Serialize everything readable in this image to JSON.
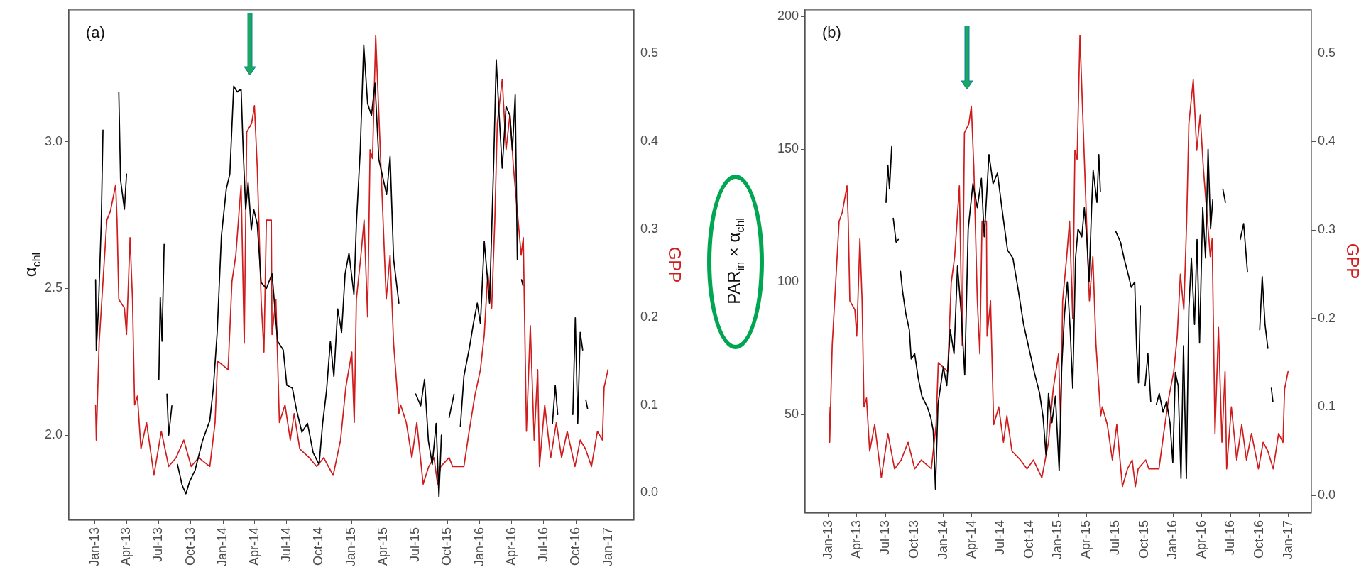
{
  "chart_data": [
    {
      "type": "line",
      "annotations": [
        "(a)"
      ],
      "ylabel": "α$_{chl}$",
      "y2label": "GPP",
      "grid": false,
      "legend": false,
      "marker": "none",
      "line_style": "solid",
      "xlim": [
        "2012-10-19",
        "2017-03-15"
      ],
      "xticks": [
        {
          "value": "2013-01-01",
          "label": "Jan-13"
        },
        {
          "value": "2013-04-01",
          "label": "Apr-13"
        },
        {
          "value": "2013-07-01",
          "label": "Jul-13"
        },
        {
          "value": "2013-10-01",
          "label": "Oct-13"
        },
        {
          "value": "2014-01-01",
          "label": "Jan-14"
        },
        {
          "value": "2014-04-01",
          "label": "Apr-14"
        },
        {
          "value": "2014-07-01",
          "label": "Jul-14"
        },
        {
          "value": "2014-10-01",
          "label": "Oct-14"
        },
        {
          "value": "2015-01-01",
          "label": "Jan-15"
        },
        {
          "value": "2015-04-01",
          "label": "Apr-15"
        },
        {
          "value": "2015-07-01",
          "label": "Jul-15"
        },
        {
          "value": "2015-10-01",
          "label": "Oct-15"
        },
        {
          "value": "2016-01-01",
          "label": "Jan-16"
        },
        {
          "value": "2016-04-01",
          "label": "Apr-16"
        },
        {
          "value": "2016-07-01",
          "label": "Jul-16"
        },
        {
          "value": "2016-10-01",
          "label": "Oct-16"
        },
        {
          "value": "2017-01-01",
          "label": "Jan-17"
        }
      ],
      "ylim": [
        1.71,
        3.45
      ],
      "yticks": [
        {
          "value": 2,
          "label": "2.0"
        },
        2.5,
        {
          "value": 3,
          "label": "3.0"
        }
      ],
      "y2lim": [
        -0.031,
        0.549
      ],
      "y2ticks": [
        {
          "value": 0,
          "label": "0.0"
        },
        0.1,
        0.2,
        0.3,
        0.4,
        0.5
      ],
      "series": [
        {
          "color": "#000000",
          "x": [
            "2013-01-03",
            "2013-01-05",
            "2013-01-11",
            "2013-01-19",
            "2013-01-24",
            "2013-02-15",
            "2013-03-10",
            "2013-03-15",
            "2013-03-26",
            "2013-04-01",
            "2013-04-15",
            "2013-07-02",
            "2013-07-06",
            "2013-07-11",
            "2013-07-17",
            "2013-07-21",
            "2013-07-25",
            "2013-07-30",
            "2013-08-08",
            "2013-08-16",
            "2013-08-24",
            "2013-09-06",
            "2013-09-17",
            "2013-09-27",
            "2013-10-13",
            "2013-11-03",
            "2013-11-24",
            "2013-12-04",
            "2013-12-15",
            "2013-12-27",
            "2014-01-10",
            "2014-01-20",
            "2014-01-31",
            "2014-02-10",
            "2014-02-21",
            "2014-02-27",
            "2014-03-06",
            "2014-03-13",
            "2014-03-22",
            "2014-03-29",
            "2014-04-08",
            "2014-04-19",
            "2014-05-04",
            "2014-05-20",
            "2014-06-05",
            "2014-06-21",
            "2014-07-01",
            "2014-07-17",
            "2014-07-28",
            "2014-08-13",
            "2014-08-29",
            "2014-09-14",
            "2014-10-01",
            "2014-10-11",
            "2014-10-22",
            "2014-11-02",
            "2014-11-12",
            "2014-11-23",
            "2014-12-04",
            "2014-12-14",
            "2014-12-25",
            "2015-01-08",
            "2015-01-15",
            "2015-01-26",
            "2015-02-05",
            "2015-02-16",
            "2015-02-27",
            "2015-03-09",
            "2015-03-20",
            "2015-03-31",
            "2015-04-11",
            "2015-04-21",
            "2015-05-01",
            "2015-05-16",
            "2015-05-25",
            "2015-07-03",
            "2015-07-17",
            "2015-07-28",
            "2015-08-08",
            "2015-08-19",
            "2015-08-30",
            "2015-09-07",
            "2015-09-14",
            "2015-09-25",
            "2015-10-06",
            "2015-10-20",
            "2015-10-27",
            "2015-11-07",
            "2015-11-17",
            "2015-12-03",
            "2015-12-14",
            "2015-12-25",
            "2016-01-03",
            "2016-01-14",
            "2016-01-29",
            "2016-02-10",
            "2016-02-17",
            "2016-02-24",
            "2016-03-05",
            "2016-03-16",
            "2016-03-27",
            "2016-04-03",
            "2016-04-11",
            "2016-04-17",
            "2016-04-24",
            "2016-04-29",
            "2016-05-03",
            "2016-05-10",
            "2016-07-26",
            "2016-08-03",
            "2016-08-10",
            "2016-08-20",
            "2016-09-22",
            "2016-09-29",
            "2016-10-06",
            "2016-10-13",
            "2016-10-20",
            "2016-10-25",
            "2016-10-29",
            "2016-11-03"
          ],
          "values": [
            2.53,
            2.29,
            2.43,
            2.72,
            3.04,
            null,
            3.17,
            2.87,
            2.77,
            2.89,
            null,
            2.19,
            2.47,
            2.32,
            2.65,
            null,
            2.14,
            2.0,
            2.1,
            null,
            1.9,
            1.83,
            1.8,
            1.84,
            1.88,
            1.98,
            2.05,
            2.16,
            2.35,
            2.68,
            2.84,
            2.89,
            3.19,
            3.17,
            3.18,
            2.97,
            2.77,
            2.86,
            2.7,
            2.77,
            2.72,
            2.52,
            2.5,
            2.55,
            2.32,
            2.29,
            2.17,
            2.16,
            2.09,
            2.01,
            2.04,
            1.94,
            1.9,
            2.04,
            2.15,
            2.32,
            2.2,
            2.43,
            2.35,
            2.55,
            2.62,
            2.48,
            2.72,
            2.97,
            3.33,
            3.13,
            3.09,
            3.2,
            2.94,
            2.88,
            2.82,
            2.95,
            2.6,
            2.45,
            null,
            2.14,
            2.1,
            2.19,
            1.98,
            1.9,
            2.04,
            1.79,
            2.0,
            null,
            2.06,
            2.14,
            null,
            2.03,
            2.2,
            2.3,
            2.38,
            2.45,
            2.38,
            2.66,
            2.45,
            2.94,
            3.28,
            3.12,
            2.91,
            3.12,
            3.09,
            2.97,
            3.16,
            2.6,
            null,
            2.53,
            2.51,
            null,
            2.04,
            2.17,
            2.07,
            null,
            2.07,
            2.4,
            2.04,
            2.35,
            2.29,
            null,
            2.12,
            2.09
          ]
        },
        {
          "color": "#d01c1c",
          "axis": "y2",
          "x": [
            "2013-01-03",
            "2013-01-05",
            "2013-01-13",
            "2013-01-24",
            "2013-02-04",
            "2013-02-14",
            "2013-03-01",
            "2013-03-05",
            "2013-03-10",
            "2013-03-26",
            "2013-04-01",
            "2013-04-11",
            "2013-04-18",
            "2013-04-24",
            "2013-05-02",
            "2013-05-12",
            "2013-05-28",
            "2013-06-18",
            "2013-07-09",
            "2013-07-30",
            "2013-08-20",
            "2013-09-11",
            "2013-10-02",
            "2013-10-23",
            "2013-11-24",
            "2013-12-09",
            "2013-12-16",
            "2014-01-15",
            "2014-01-26",
            "2014-02-06",
            "2014-02-21",
            "2014-03-02",
            "2014-03-09",
            "2014-03-23",
            "2014-03-31",
            "2014-04-08",
            "2014-04-19",
            "2014-04-27",
            "2014-05-04",
            "2014-05-18",
            "2014-05-20",
            "2014-05-31",
            "2014-06-10",
            "2014-06-26",
            "2014-07-11",
            "2014-07-22",
            "2014-08-07",
            "2014-09-03",
            "2014-09-24",
            "2014-10-14",
            "2014-11-10",
            "2014-12-01",
            "2014-12-16",
            "2015-01-02",
            "2015-01-09",
            "2015-01-15",
            "2015-01-28",
            "2015-02-06",
            "2015-02-16",
            "2015-02-23",
            "2015-03-02",
            "2015-03-11",
            "2015-03-20",
            "2015-03-31",
            "2015-04-10",
            "2015-04-21",
            "2015-05-01",
            "2015-05-16",
            "2015-05-21",
            "2015-06-06",
            "2015-06-22",
            "2015-07-06",
            "2015-07-24",
            "2015-08-09",
            "2015-08-24",
            "2015-09-03",
            "2015-09-12",
            "2015-10-06",
            "2015-10-16",
            "2015-11-17",
            "2015-12-02",
            "2015-12-18",
            "2016-01-03",
            "2016-01-14",
            "2016-01-24",
            "2016-02-04",
            "2016-02-13",
            "2016-02-20",
            "2016-03-05",
            "2016-03-16",
            "2016-03-27",
            "2016-04-06",
            "2016-04-17",
            "2016-04-28",
            "2016-05-04",
            "2016-05-13",
            "2016-05-24",
            "2016-06-04",
            "2016-06-14",
            "2016-06-19",
            "2016-07-04",
            "2016-07-21",
            "2016-08-06",
            "2016-08-21",
            "2016-09-06",
            "2016-09-28",
            "2016-10-13",
            "2016-10-28",
            "2016-11-14",
            "2016-12-01",
            "2016-12-15",
            "2016-12-20",
            "2016-12-31"
          ],
          "values": [
            0.1,
            0.06,
            0.17,
            0.24,
            0.31,
            0.32,
            0.35,
            0.31,
            0.22,
            0.21,
            0.18,
            0.29,
            0.22,
            0.1,
            0.11,
            0.05,
            0.08,
            0.02,
            0.07,
            0.03,
            0.04,
            0.06,
            0.03,
            0.04,
            0.03,
            0.08,
            0.15,
            0.14,
            0.24,
            0.27,
            0.35,
            0.17,
            0.41,
            0.42,
            0.44,
            0.37,
            0.22,
            0.16,
            0.31,
            0.31,
            0.18,
            0.22,
            0.08,
            0.1,
            0.06,
            0.09,
            0.05,
            0.04,
            0.03,
            0.04,
            0.02,
            0.06,
            0.12,
            0.16,
            0.08,
            0.22,
            0.27,
            0.31,
            0.2,
            0.39,
            0.38,
            0.52,
            0.43,
            0.32,
            0.22,
            0.27,
            0.17,
            0.09,
            0.1,
            0.08,
            0.04,
            0.08,
            0.01,
            0.03,
            0.04,
            0.01,
            0.03,
            0.04,
            0.03,
            0.03,
            0.07,
            0.11,
            0.14,
            0.18,
            0.25,
            0.21,
            0.31,
            0.42,
            0.47,
            0.39,
            0.43,
            0.37,
            0.32,
            0.27,
            0.29,
            0.07,
            0.19,
            0.06,
            0.14,
            0.03,
            0.1,
            0.04,
            0.08,
            0.04,
            0.07,
            0.03,
            0.06,
            0.05,
            0.03,
            0.07,
            0.06,
            0.12,
            0.14
          ]
        }
      ]
    },
    {
      "type": "line",
      "annotations": [
        "(b)"
      ],
      "ylabel": "PAR$_{in}$ × α$_{chl}$",
      "y2label": "GPP",
      "grid": false,
      "legend": false,
      "marker": "none",
      "line_style": "solid",
      "xlim": [
        "2012-10-19",
        "2017-03-15"
      ],
      "xticks": [
        {
          "value": "2013-01-01",
          "label": "Jan-13"
        },
        {
          "value": "2013-04-01",
          "label": "Apr-13"
        },
        {
          "value": "2013-07-01",
          "label": "Jul-13"
        },
        {
          "value": "2013-10-01",
          "label": "Oct-13"
        },
        {
          "value": "2014-01-01",
          "label": "Jan-14"
        },
        {
          "value": "2014-04-01",
          "label": "Apr-14"
        },
        {
          "value": "2014-07-01",
          "label": "Jul-14"
        },
        {
          "value": "2014-10-01",
          "label": "Oct-14"
        },
        {
          "value": "2015-01-01",
          "label": "Jan-15"
        },
        {
          "value": "2015-04-01",
          "label": "Apr-15"
        },
        {
          "value": "2015-07-01",
          "label": "Jul-15"
        },
        {
          "value": "2015-10-01",
          "label": "Oct-15"
        },
        {
          "value": "2016-01-01",
          "label": "Jan-16"
        },
        {
          "value": "2016-04-01",
          "label": "Apr-16"
        },
        {
          "value": "2016-07-01",
          "label": "Jul-16"
        },
        {
          "value": "2016-10-01",
          "label": "Oct-16"
        },
        {
          "value": "2017-01-01",
          "label": "Jan-17"
        }
      ],
      "ylim": [
        13,
        202.5
      ],
      "yticks": [
        50,
        100,
        150,
        200
      ],
      "y2lim": [
        -0.02,
        0.549
      ],
      "y2ticks": [
        {
          "value": 0,
          "label": "0.0"
        },
        0.1,
        0.2,
        0.3,
        0.4,
        0.5
      ],
      "series": [
        {
          "color": "#000000",
          "x": [
            "2013-07-03",
            "2013-07-09",
            "2013-07-14",
            "2013-07-21",
            "2013-07-23",
            "2013-07-26",
            "2013-08-04",
            "2013-08-11",
            "2013-08-15",
            "2013-08-18",
            "2013-08-24",
            "2013-09-04",
            "2013-09-15",
            "2013-09-21",
            "2013-10-02",
            "2013-10-13",
            "2013-10-25",
            "2013-11-11",
            "2013-11-22",
            "2013-11-30",
            "2013-12-07",
            "2013-12-15",
            "2014-01-01",
            "2014-01-12",
            "2014-01-23",
            "2014-02-04",
            "2014-02-15",
            "2014-02-27",
            "2014-03-10",
            "2014-03-21",
            "2014-04-05",
            "2014-04-19",
            "2014-05-02",
            "2014-05-11",
            "2014-05-26",
            "2014-06-08",
            "2014-06-22",
            "2014-07-07",
            "2014-07-24",
            "2014-08-10",
            "2014-08-27",
            "2014-09-13",
            "2014-09-30",
            "2014-10-17",
            "2014-11-03",
            "2014-11-14",
            "2014-11-23",
            "2014-12-01",
            "2014-12-12",
            "2014-12-23",
            "2015-01-04",
            "2015-01-12",
            "2015-01-21",
            "2015-01-30",
            "2015-02-08",
            "2015-02-16",
            "2015-02-25",
            "2015-03-05",
            "2015-03-17",
            "2015-03-25",
            "2015-04-02",
            "2015-04-09",
            "2015-04-17",
            "2015-04-22",
            "2015-05-04",
            "2015-05-10",
            "2015-05-15",
            "2015-05-25",
            "2015-07-03",
            "2015-07-18",
            "2015-07-29",
            "2015-08-09",
            "2015-08-21",
            "2015-09-01",
            "2015-09-07",
            "2015-09-13",
            "2015-09-19",
            "2015-09-25",
            "2015-10-04",
            "2015-10-13",
            "2015-10-22",
            "2015-10-27",
            "2015-11-09",
            "2015-11-18",
            "2015-11-30",
            "2015-12-11",
            "2015-12-22",
            "2015-12-31",
            "2016-01-08",
            "2016-01-17",
            "2016-01-26",
            "2016-02-03",
            "2016-02-12",
            "2016-02-20",
            "2016-02-28",
            "2016-03-09",
            "2016-03-17",
            "2016-03-25",
            "2016-04-04",
            "2016-04-13",
            "2016-04-21",
            "2016-04-29",
            "2016-05-06",
            "2016-05-12",
            "2016-06-07",
            "2016-06-15",
            "2016-06-25",
            "2016-08-01",
            "2016-08-12",
            "2016-08-24",
            "2016-09-05",
            "2016-10-02",
            "2016-10-10",
            "2016-10-19",
            "2016-10-28",
            "2016-11-05",
            "2016-11-08",
            "2016-11-13"
          ],
          "values": [
            130,
            144,
            135,
            151,
            null,
            124,
            115,
            116,
            null,
            104,
            97,
            88,
            82,
            71,
            73,
            64,
            57,
            53,
            49,
            44,
            22,
            54,
            68,
            61,
            82,
            73,
            106,
            88,
            65,
            120,
            137,
            128,
            139,
            117,
            148,
            137,
            141,
            127,
            112,
            109,
            97,
            84,
            75,
            66,
            58,
            49,
            35,
            58,
            47,
            57,
            29,
            68,
            88,
            100,
            82,
            60,
            109,
            120,
            117,
            128,
            116,
            100,
            128,
            142,
            130,
            148,
            134,
            null,
            119,
            115,
            109,
            104,
            98,
            100,
            75,
            62,
            91,
            null,
            61,
            73,
            55,
            null,
            54,
            58,
            51,
            55,
            47,
            32,
            66,
            61,
            26,
            76,
            26,
            90,
            109,
            84,
            116,
            77,
            128,
            109,
            150,
            120,
            131,
            null,
            135,
            130,
            null,
            116,
            122,
            104,
            null,
            82,
            102,
            84,
            75,
            null,
            60,
            55
          ]
        },
        {
          "color": "#d01c1c",
          "axis": "y2",
          "x": [
            "2013-01-03",
            "2013-01-05",
            "2013-01-13",
            "2013-01-24",
            "2013-02-04",
            "2013-02-14",
            "2013-03-01",
            "2013-03-05",
            "2013-03-10",
            "2013-03-26",
            "2013-04-01",
            "2013-04-11",
            "2013-04-18",
            "2013-04-24",
            "2013-05-02",
            "2013-05-12",
            "2013-05-28",
            "2013-06-18",
            "2013-07-09",
            "2013-07-30",
            "2013-08-20",
            "2013-09-11",
            "2013-10-02",
            "2013-10-23",
            "2013-11-24",
            "2013-12-09",
            "2013-12-16",
            "2014-01-15",
            "2014-01-26",
            "2014-02-06",
            "2014-02-21",
            "2014-03-02",
            "2014-03-09",
            "2014-03-23",
            "2014-03-31",
            "2014-04-08",
            "2014-04-19",
            "2014-04-27",
            "2014-05-04",
            "2014-05-18",
            "2014-05-20",
            "2014-05-31",
            "2014-06-10",
            "2014-06-26",
            "2014-07-11",
            "2014-07-22",
            "2014-08-07",
            "2014-09-03",
            "2014-09-24",
            "2014-10-14",
            "2014-11-10",
            "2014-12-01",
            "2014-12-16",
            "2015-01-02",
            "2015-01-09",
            "2015-01-15",
            "2015-01-28",
            "2015-02-06",
            "2015-02-16",
            "2015-02-23",
            "2015-03-02",
            "2015-03-11",
            "2015-03-20",
            "2015-03-31",
            "2015-04-10",
            "2015-04-21",
            "2015-05-01",
            "2015-05-16",
            "2015-05-21",
            "2015-06-06",
            "2015-06-22",
            "2015-07-06",
            "2015-07-24",
            "2015-08-09",
            "2015-08-24",
            "2015-09-03",
            "2015-09-12",
            "2015-10-06",
            "2015-10-16",
            "2015-11-17",
            "2015-12-02",
            "2015-12-18",
            "2016-01-03",
            "2016-01-14",
            "2016-01-24",
            "2016-02-04",
            "2016-02-13",
            "2016-02-20",
            "2016-03-05",
            "2016-03-16",
            "2016-03-27",
            "2016-04-06",
            "2016-04-17",
            "2016-04-28",
            "2016-05-04",
            "2016-05-13",
            "2016-05-24",
            "2016-06-04",
            "2016-06-14",
            "2016-06-19",
            "2016-07-04",
            "2016-07-21",
            "2016-08-06",
            "2016-08-21",
            "2016-09-06",
            "2016-09-28",
            "2016-10-13",
            "2016-10-28",
            "2016-11-14",
            "2016-12-01",
            "2016-12-15",
            "2016-12-20",
            "2016-12-31"
          ],
          "values": [
            0.1,
            0.06,
            0.17,
            0.24,
            0.31,
            0.32,
            0.35,
            0.31,
            0.22,
            0.21,
            0.18,
            0.29,
            0.22,
            0.1,
            0.11,
            0.05,
            0.08,
            0.02,
            0.07,
            0.03,
            0.04,
            0.06,
            0.03,
            0.04,
            0.03,
            0.08,
            0.15,
            0.14,
            0.24,
            0.27,
            0.35,
            0.17,
            0.41,
            0.42,
            0.44,
            0.37,
            0.22,
            0.16,
            0.31,
            0.31,
            0.18,
            0.22,
            0.08,
            0.1,
            0.06,
            0.09,
            0.05,
            0.04,
            0.03,
            0.04,
            0.02,
            0.06,
            0.12,
            0.16,
            0.08,
            0.22,
            0.27,
            0.31,
            0.2,
            0.39,
            0.38,
            0.52,
            0.43,
            0.32,
            0.22,
            0.27,
            0.17,
            0.09,
            0.1,
            0.08,
            0.04,
            0.08,
            0.01,
            0.03,
            0.04,
            0.01,
            0.03,
            0.04,
            0.03,
            0.03,
            0.07,
            0.11,
            0.14,
            0.18,
            0.25,
            0.21,
            0.31,
            0.42,
            0.47,
            0.39,
            0.43,
            0.37,
            0.32,
            0.27,
            0.29,
            0.07,
            0.19,
            0.06,
            0.14,
            0.03,
            0.1,
            0.04,
            0.08,
            0.04,
            0.07,
            0.03,
            0.06,
            0.05,
            0.03,
            0.07,
            0.06,
            0.12,
            0.14
          ]
        }
      ]
    }
  ]
}
